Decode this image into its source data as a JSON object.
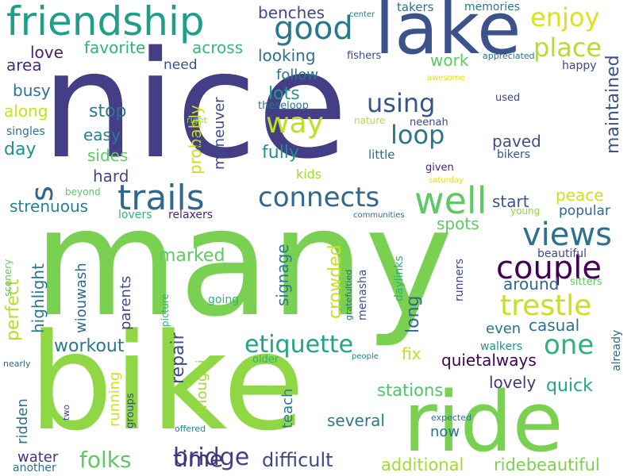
{
  "words": [
    {
      "text": "nice",
      "color": "#433e85"
    },
    {
      "text": "many",
      "color": "#7ad151"
    },
    {
      "text": "bike",
      "color": "#8fd744"
    },
    {
      "text": "ride",
      "color": "#7ad151"
    },
    {
      "text": "lake",
      "color": "#3b528b"
    },
    {
      "text": "friendship",
      "color": "#1f9e89"
    },
    {
      "text": "good",
      "color": "#2a788e"
    },
    {
      "text": "enjoy",
      "color": "#dde318"
    },
    {
      "text": "place",
      "color": "#b5de2b"
    },
    {
      "text": "trails",
      "color": "#31688e"
    },
    {
      "text": "connects",
      "color": "#31688e"
    },
    {
      "text": "well",
      "color": "#5ec962"
    },
    {
      "text": "views",
      "color": "#2c728e"
    },
    {
      "text": "couple",
      "color": "#440154"
    },
    {
      "text": "trestle",
      "color": "#c8e020"
    },
    {
      "text": "etiquette",
      "color": "#20a386"
    },
    {
      "text": "one",
      "color": "#2eb37c"
    },
    {
      "text": "way",
      "color": "#bddf26"
    },
    {
      "text": "loop",
      "color": "#2a788e"
    },
    {
      "text": "using",
      "color": "#39568c"
    },
    {
      "text": "bridge",
      "color": "#433e85"
    },
    {
      "text": "time",
      "color": "#46337e"
    },
    {
      "text": "difficult",
      "color": "#3e4989"
    },
    {
      "text": "folks",
      "color": "#5ec962"
    },
    {
      "text": "workout",
      "color": "#2a788e"
    },
    {
      "text": "quietalways",
      "color": "#440154"
    },
    {
      "text": "quick",
      "color": "#22a884"
    },
    {
      "text": "additional",
      "color": "#a2da37"
    },
    {
      "text": "ridebeautiful",
      "color": "#7ad151"
    },
    {
      "text": "stations",
      "color": "#52c569"
    },
    {
      "text": "several",
      "color": "#2a788e"
    },
    {
      "text": "casual",
      "color": "#2c728e"
    },
    {
      "text": "peace",
      "color": "#d0e11c"
    },
    {
      "text": "popular",
      "color": "#31688e"
    },
    {
      "text": "start",
      "color": "#3b528b"
    },
    {
      "text": "paved",
      "color": "#3b528b"
    },
    {
      "text": "fully",
      "color": "#21918c"
    },
    {
      "text": "lots",
      "color": "#1f9e89"
    },
    {
      "text": "kids",
      "color": "#a2da37"
    },
    {
      "text": "marked",
      "color": "#5ec962"
    },
    {
      "text": "strenuous",
      "color": "#26828e"
    },
    {
      "text": "spots",
      "color": "#5ec962"
    },
    {
      "text": "stop",
      "color": "#2a788e"
    },
    {
      "text": "easy",
      "color": "#27808e"
    },
    {
      "text": "sides",
      "color": "#5ec962"
    },
    {
      "text": "hard",
      "color": "#3e4989"
    },
    {
      "text": "day",
      "color": "#21918c"
    },
    {
      "text": "busy",
      "color": "#2c728e"
    },
    {
      "text": "along",
      "color": "#c8e020"
    },
    {
      "text": "area",
      "color": "#472d7b"
    },
    {
      "text": "love",
      "color": "#481f70"
    },
    {
      "text": "favorite",
      "color": "#2eb37c"
    },
    {
      "text": "across",
      "color": "#35b779"
    },
    {
      "text": "need",
      "color": "#3b528b"
    },
    {
      "text": "follow",
      "color": "#2c728e"
    },
    {
      "text": "looking",
      "color": "#2c728e"
    },
    {
      "text": "benches",
      "color": "#3e4989"
    },
    {
      "text": "work",
      "color": "#5ec962"
    },
    {
      "text": "fishers",
      "color": "#3e4989"
    },
    {
      "text": "takers",
      "color": "#2c728e"
    },
    {
      "text": "memories",
      "color": "#2a788e"
    },
    {
      "text": "center",
      "color": "#2a788e"
    },
    {
      "text": "appreciated",
      "color": "#2c728e"
    },
    {
      "text": "happy",
      "color": "#3e4989"
    },
    {
      "text": "awesome",
      "color": "#dde318"
    },
    {
      "text": "used",
      "color": "#3e4989"
    },
    {
      "text": "theseloop",
      "color": "#2c728e"
    },
    {
      "text": "nature",
      "color": "#b5de2b"
    },
    {
      "text": "neenah",
      "color": "#3e4989"
    },
    {
      "text": "little",
      "color": "#31688e"
    },
    {
      "text": "given",
      "color": "#482878"
    },
    {
      "text": "bikers",
      "color": "#3b528b"
    },
    {
      "text": "saturday",
      "color": "#d8e219"
    },
    {
      "text": "singles",
      "color": "#2c728e"
    },
    {
      "text": "right",
      "color": "#8fd744"
    },
    {
      "text": "young",
      "color": "#8fd744"
    },
    {
      "text": "lovers",
      "color": "#2eb37c"
    },
    {
      "text": "relaxers",
      "color": "#482878"
    },
    {
      "text": "communities",
      "color": "#2c728e"
    },
    {
      "text": "beyond",
      "color": "#5ec962"
    },
    {
      "text": "beautiful",
      "color": "#3e4989"
    },
    {
      "text": "sitters",
      "color": "#5ec962"
    },
    {
      "text": "around",
      "color": "#31688e"
    },
    {
      "text": "lovely",
      "color": "#453781"
    },
    {
      "text": "even",
      "color": "#2c728e"
    },
    {
      "text": "walkers",
      "color": "#21918c"
    },
    {
      "text": "fix",
      "color": "#bddf26"
    },
    {
      "text": "going",
      "color": "#2eb37c"
    },
    {
      "text": "older",
      "color": "#2eb37c"
    },
    {
      "text": "people",
      "color": "#26828e"
    },
    {
      "text": "nearly",
      "color": "#31688e"
    },
    {
      "text": "two",
      "color": "#3e4989"
    },
    {
      "text": "offered",
      "color": "#27808e"
    },
    {
      "text": "expected",
      "color": "#2c728e"
    },
    {
      "text": "now",
      "color": "#2c728e"
    },
    {
      "text": "water",
      "color": "#46337e"
    },
    {
      "text": "another",
      "color": "#2c728e"
    },
    {
      "text": "maintained",
      "color": "#3b528b"
    },
    {
      "text": "s",
      "color": "#31688e"
    },
    {
      "text": "probably",
      "color": "#c8e020"
    },
    {
      "text": "ve",
      "color": "#3e4989"
    },
    {
      "text": "maneuver",
      "color": "#3e4989"
    },
    {
      "text": "signage",
      "color": "#2a788e"
    },
    {
      "text": "crowded",
      "color": "#c8e020"
    },
    {
      "text": "long",
      "color": "#31688e"
    },
    {
      "text": "teach",
      "color": "#2a788e"
    },
    {
      "text": "repair",
      "color": "#3e4989"
    },
    {
      "text": "thoughi",
      "color": "#a2da37"
    },
    {
      "text": "running",
      "color": "#d0e11c"
    },
    {
      "text": "groups",
      "color": "#3e4989"
    },
    {
      "text": "parents",
      "color": "#3e4989"
    },
    {
      "text": "wiouwash",
      "color": "#31688e"
    },
    {
      "text": "highlight",
      "color": "#2a788e"
    },
    {
      "text": "perfect",
      "color": "#b5de2b"
    },
    {
      "text": "ridden",
      "color": "#2c728e"
    },
    {
      "text": "picture",
      "color": "#2eb37c"
    },
    {
      "text": "scenery",
      "color": "#5ec962"
    },
    {
      "text": "menasha",
      "color": "#3b528b"
    },
    {
      "text": "gratefultied",
      "color": "#31688e"
    },
    {
      "text": "daylinks",
      "color": "#2eb37c"
    },
    {
      "text": "runners",
      "color": "#3e4989"
    },
    {
      "text": "already",
      "color": "#31688e"
    }
  ]
}
